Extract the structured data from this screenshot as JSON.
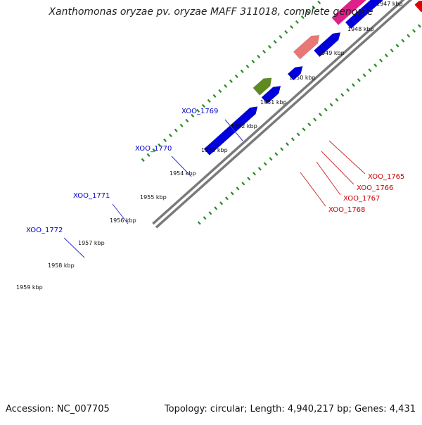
{
  "title": "Xanthomonas oryzae pv. oryzae MAFF 311018, complete genome",
  "footer": {
    "accession": "Accession: NC_007705",
    "summary": "Topology: circular; Length: 4,940,217 bp; Genes: 4,431"
  },
  "scale_labels": [
    {
      "label": "1947 kbp"
    },
    {
      "label": "1948 kbp"
    },
    {
      "label": "1949 kbp"
    },
    {
      "label": "1950 kbp"
    },
    {
      "label": "1951 kbp"
    },
    {
      "label": "1952 kbp"
    },
    {
      "label": "1953 kbp"
    },
    {
      "label": "1954 kbp"
    },
    {
      "label": "1955 kbp"
    },
    {
      "label": "1956 kbp"
    },
    {
      "label": "1957 kbp"
    },
    {
      "label": "1958 kbp"
    },
    {
      "label": "1959 kbp"
    }
  ],
  "gene_labels_left": [
    {
      "label": "XOO_1769",
      "color": "#0000cc"
    },
    {
      "label": "XOO_1770",
      "color": "#0000cc"
    },
    {
      "label": "XOO_1771",
      "color": "#0000cc"
    },
    {
      "label": "XOO_1772",
      "color": "#0000cc"
    }
  ],
  "gene_labels_right": [
    {
      "label": "XOO_1765",
      "color": "#cc0000"
    },
    {
      "label": "XOO_1766",
      "color": "#cc0000"
    },
    {
      "label": "XOO_1767",
      "color": "#cc0000"
    },
    {
      "label": "XOO_1768",
      "color": "#cc0000"
    }
  ],
  "colors": {
    "backbone": "#7a7a7a",
    "tick_dots": "#2a8a2a",
    "forward_gene": "#0000dd",
    "gray_feature": "#c8c8c8",
    "magenta_feature": "#e0208a",
    "salmon_feature": "#e87878",
    "olive_feature": "#5e8a20",
    "red_feature": "#e00000",
    "cyan_feature": "#00b0d8",
    "orange_feature": "#ff8c00"
  }
}
